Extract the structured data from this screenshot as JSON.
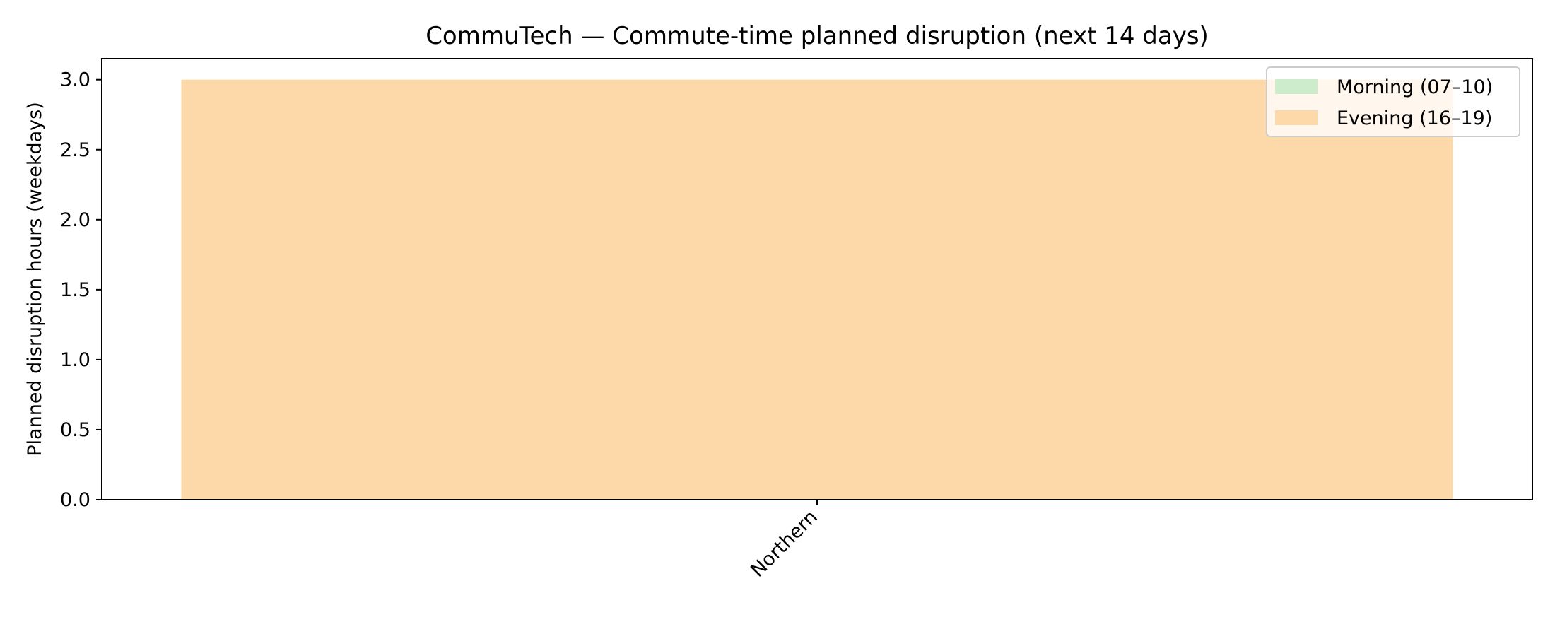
{
  "chart_data": {
    "type": "bar",
    "stacked": true,
    "title": "CommuTech — Commute-time planned disruption (next 14 days)",
    "xlabel": "",
    "ylabel": "Planned disruption hours (weekdays)",
    "categories": [
      "Northern"
    ],
    "series": [
      {
        "name": "Morning (07–10)",
        "values": [
          0.0
        ],
        "color": "#cdeccb"
      },
      {
        "name": "Evening (16–19)",
        "values": [
          3.0
        ],
        "color": "#fdd8a8"
      }
    ],
    "ylim": [
      0,
      3.15
    ],
    "yticks": [
      0.0,
      0.5,
      1.0,
      1.5,
      2.0,
      2.5,
      3.0
    ],
    "ytick_labels": [
      "0.0",
      "0.5",
      "1.0",
      "1.5",
      "2.0",
      "2.5",
      "3.0"
    ],
    "grid": false,
    "legend_position": "top-right"
  }
}
